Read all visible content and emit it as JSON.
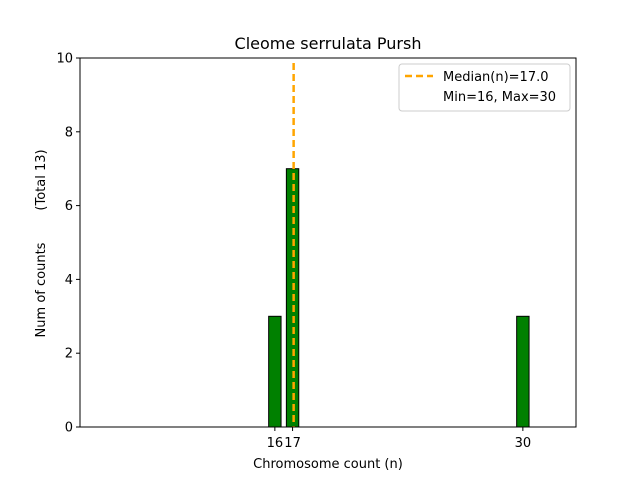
{
  "chart_data": {
    "type": "bar",
    "title": "Cleome serrulata Pursh",
    "xlabel": "Chromosome count (n)",
    "ylabel": "Num of counts",
    "ylabel_total": "(Total 13)",
    "xlim": [
      5,
      33
    ],
    "ylim": [
      0,
      10
    ],
    "yticks": [
      0,
      2,
      4,
      6,
      8,
      10
    ],
    "xticks": [
      16,
      17,
      30
    ],
    "bar_width": 0.7,
    "bars": [
      {
        "x": 16,
        "value": 3
      },
      {
        "x": 17,
        "value": 7
      },
      {
        "x": 30,
        "value": 3
      }
    ],
    "baseline_extent": [
      5,
      32
    ],
    "median": 17.0,
    "legend": {
      "placement": "top-right",
      "median_label": "Median(n)=17.0",
      "range_label": "Min=16, Max=30"
    },
    "colors": {
      "bar_fill": "#008000",
      "bar_edge": "#000000",
      "median_line": "#FFA500"
    },
    "grid": false
  }
}
